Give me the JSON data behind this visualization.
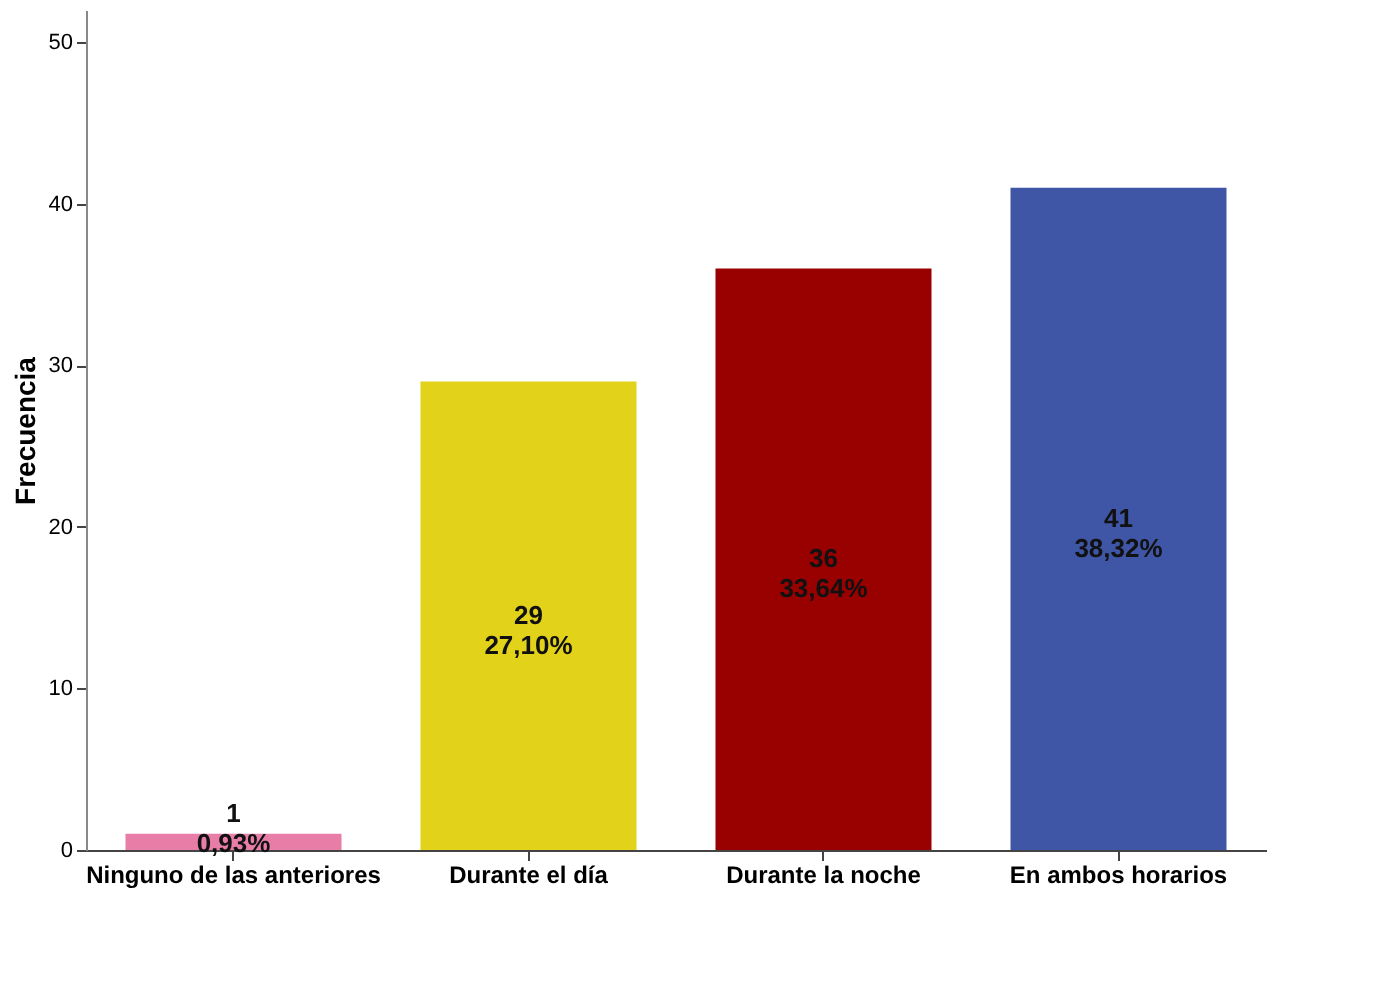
{
  "chart_data": {
    "type": "bar",
    "ylabel": "Frecuencia",
    "categories": [
      "Ninguno de las anteriores",
      "Durante el día",
      "Durante la noche",
      "En ambos horarios"
    ],
    "values": [
      1,
      29,
      36,
      41
    ],
    "colors": [
      "#e87ea8",
      "#e2d31a",
      "#990000",
      "#3f56a6"
    ],
    "value_labels": [
      "1\n0,93%",
      "29\n27,10%",
      "36\n33,64%",
      "41\n38,32%"
    ],
    "ylim": [
      0,
      52
    ],
    "yticks": [
      0,
      10,
      20,
      30,
      40,
      50
    ],
    "grid": false,
    "legend": false
  }
}
